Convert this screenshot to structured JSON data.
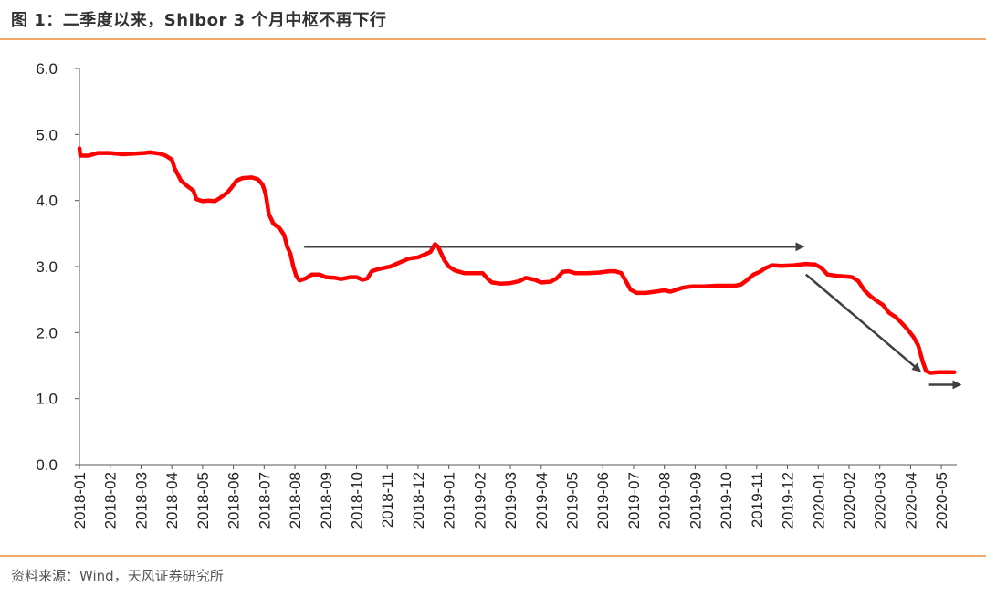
{
  "header": {
    "title": "图 1：二季度以来，Shibor 3 个月中枢不再下行"
  },
  "footer": {
    "source": "资料来源：Wind，天风证券研究所"
  },
  "colors": {
    "accent_rule": "#F2A86B",
    "series": "#FF0000",
    "arrow": "#404040",
    "axis": "#555555"
  },
  "chart_data": {
    "type": "line",
    "title": "",
    "xlabel": "",
    "ylabel": "",
    "ylim": [
      0,
      6
    ],
    "yticks": [
      "0.0",
      "1.0",
      "2.0",
      "3.0",
      "4.0",
      "5.0",
      "6.0"
    ],
    "grid": false,
    "legend": "none",
    "x_tick_labels": [
      "2018-01",
      "2018-02",
      "2018-03",
      "2018-04",
      "2018-05",
      "2018-06",
      "2018-07",
      "2018-08",
      "2018-09",
      "2018-10",
      "2018-11",
      "2018-12",
      "2019-01",
      "2019-02",
      "2019-03",
      "2019-04",
      "2019-05",
      "2019-06",
      "2019-07",
      "2019-08",
      "2019-09",
      "2019-10",
      "2019-11",
      "2019-12",
      "2020-01",
      "2020-02",
      "2020-03",
      "2020-04",
      "2020-05"
    ],
    "series": [
      {
        "values": [
          [
            0.0,
            4.79
          ],
          [
            0.03,
            4.68
          ],
          [
            0.3,
            4.68
          ],
          [
            0.6,
            4.72
          ],
          [
            1.0,
            4.72
          ],
          [
            1.4,
            4.7
          ],
          [
            1.8,
            4.71
          ],
          [
            2.1,
            4.72
          ],
          [
            2.3,
            4.73
          ],
          [
            2.6,
            4.71
          ],
          [
            2.8,
            4.68
          ],
          [
            3.0,
            4.62
          ],
          [
            3.1,
            4.48
          ],
          [
            3.3,
            4.3
          ],
          [
            3.5,
            4.22
          ],
          [
            3.7,
            4.15
          ],
          [
            3.8,
            4.02
          ],
          [
            4.0,
            3.99
          ],
          [
            4.2,
            4.0
          ],
          [
            4.4,
            3.99
          ],
          [
            4.6,
            4.05
          ],
          [
            4.8,
            4.12
          ],
          [
            4.95,
            4.2
          ],
          [
            5.1,
            4.3
          ],
          [
            5.3,
            4.34
          ],
          [
            5.6,
            4.35
          ],
          [
            5.8,
            4.32
          ],
          [
            5.95,
            4.24
          ],
          [
            6.05,
            4.1
          ],
          [
            6.15,
            3.8
          ],
          [
            6.3,
            3.65
          ],
          [
            6.5,
            3.58
          ],
          [
            6.65,
            3.48
          ],
          [
            6.75,
            3.3
          ],
          [
            6.85,
            3.2
          ],
          [
            6.95,
            3.0
          ],
          [
            7.05,
            2.85
          ],
          [
            7.15,
            2.79
          ],
          [
            7.35,
            2.82
          ],
          [
            7.55,
            2.88
          ],
          [
            7.8,
            2.88
          ],
          [
            8.0,
            2.84
          ],
          [
            8.3,
            2.83
          ],
          [
            8.5,
            2.81
          ],
          [
            8.8,
            2.84
          ],
          [
            9.0,
            2.84
          ],
          [
            9.2,
            2.8
          ],
          [
            9.35,
            2.82
          ],
          [
            9.5,
            2.93
          ],
          [
            9.7,
            2.96
          ],
          [
            9.9,
            2.98
          ],
          [
            10.1,
            3.0
          ],
          [
            10.3,
            3.04
          ],
          [
            10.5,
            3.08
          ],
          [
            10.7,
            3.12
          ],
          [
            11.0,
            3.14
          ],
          [
            11.2,
            3.18
          ],
          [
            11.4,
            3.22
          ],
          [
            11.55,
            3.34
          ],
          [
            11.65,
            3.3
          ],
          [
            11.75,
            3.2
          ],
          [
            11.85,
            3.1
          ],
          [
            12.0,
            3.0
          ],
          [
            12.2,
            2.94
          ],
          [
            12.5,
            2.9
          ],
          [
            12.8,
            2.9
          ],
          [
            13.1,
            2.9
          ],
          [
            13.25,
            2.82
          ],
          [
            13.4,
            2.76
          ],
          [
            13.7,
            2.74
          ],
          [
            14.0,
            2.75
          ],
          [
            14.3,
            2.78
          ],
          [
            14.5,
            2.83
          ],
          [
            14.8,
            2.8
          ],
          [
            15.0,
            2.76
          ],
          [
            15.3,
            2.77
          ],
          [
            15.5,
            2.82
          ],
          [
            15.7,
            2.92
          ],
          [
            15.9,
            2.93
          ],
          [
            16.1,
            2.9
          ],
          [
            16.5,
            2.9
          ],
          [
            16.9,
            2.91
          ],
          [
            17.2,
            2.93
          ],
          [
            17.4,
            2.93
          ],
          [
            17.6,
            2.9
          ],
          [
            17.75,
            2.78
          ],
          [
            17.9,
            2.65
          ],
          [
            18.1,
            2.6
          ],
          [
            18.4,
            2.6
          ],
          [
            18.7,
            2.62
          ],
          [
            19.0,
            2.64
          ],
          [
            19.2,
            2.62
          ],
          [
            19.4,
            2.65
          ],
          [
            19.6,
            2.68
          ],
          [
            19.9,
            2.7
          ],
          [
            20.3,
            2.7
          ],
          [
            20.7,
            2.71
          ],
          [
            21.0,
            2.71
          ],
          [
            21.3,
            2.71
          ],
          [
            21.5,
            2.73
          ],
          [
            21.7,
            2.8
          ],
          [
            21.9,
            2.88
          ],
          [
            22.1,
            2.92
          ],
          [
            22.3,
            2.98
          ],
          [
            22.5,
            3.02
          ],
          [
            22.8,
            3.01
          ],
          [
            23.2,
            3.02
          ],
          [
            23.6,
            3.04
          ],
          [
            23.9,
            3.03
          ],
          [
            24.1,
            2.98
          ],
          [
            24.3,
            2.88
          ],
          [
            24.6,
            2.86
          ],
          [
            24.9,
            2.85
          ],
          [
            25.1,
            2.84
          ],
          [
            25.3,
            2.78
          ],
          [
            25.5,
            2.64
          ],
          [
            25.7,
            2.55
          ],
          [
            25.9,
            2.48
          ],
          [
            26.1,
            2.42
          ],
          [
            26.3,
            2.3
          ],
          [
            26.5,
            2.24
          ],
          [
            26.7,
            2.15
          ],
          [
            26.9,
            2.05
          ],
          [
            27.1,
            1.93
          ],
          [
            27.25,
            1.8
          ],
          [
            27.4,
            1.55
          ],
          [
            27.5,
            1.42
          ],
          [
            27.65,
            1.39
          ],
          [
            27.9,
            1.4
          ],
          [
            28.2,
            1.4
          ],
          [
            28.42,
            1.4
          ]
        ]
      }
    ],
    "arrows": [
      {
        "from": [
          7.3,
          3.3
        ],
        "to": [
          23.5,
          3.3
        ]
      },
      {
        "from": [
          23.6,
          2.88
        ],
        "to": [
          27.3,
          1.42
        ]
      },
      {
        "from": [
          27.6,
          1.21
        ],
        "to": [
          28.6,
          1.21
        ]
      }
    ]
  }
}
